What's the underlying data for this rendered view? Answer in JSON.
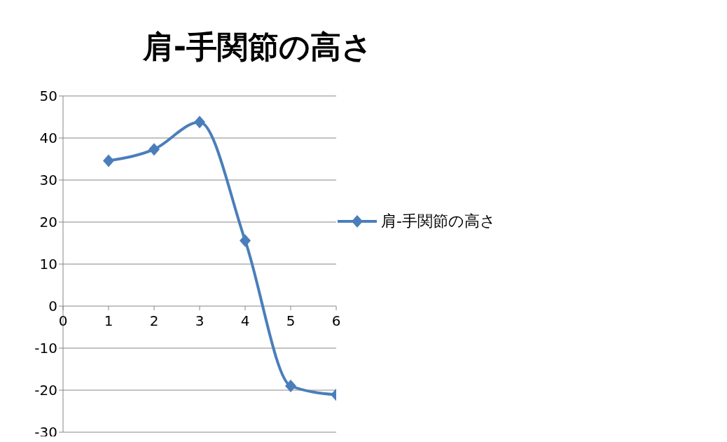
{
  "chart_data": {
    "type": "line",
    "title": "肩-手関節の高さ",
    "x": [
      1,
      2,
      3,
      4,
      5,
      6
    ],
    "series": [
      {
        "name": "肩-手関節の高さ",
        "color": "#4a7ebb",
        "values": [
          34.6,
          37.3,
          43.8,
          15.6,
          -19,
          -21.1
        ]
      }
    ],
    "xlim": [
      0,
      6
    ],
    "xticks": [
      0,
      1,
      2,
      3,
      4,
      5,
      6
    ],
    "ylim": [
      -30,
      50
    ],
    "yticks": [
      -30,
      -20,
      -10,
      0,
      10,
      20,
      30,
      40,
      50
    ],
    "grid": "y",
    "legend": "right",
    "marker": "diamond",
    "line_style": "solid"
  }
}
